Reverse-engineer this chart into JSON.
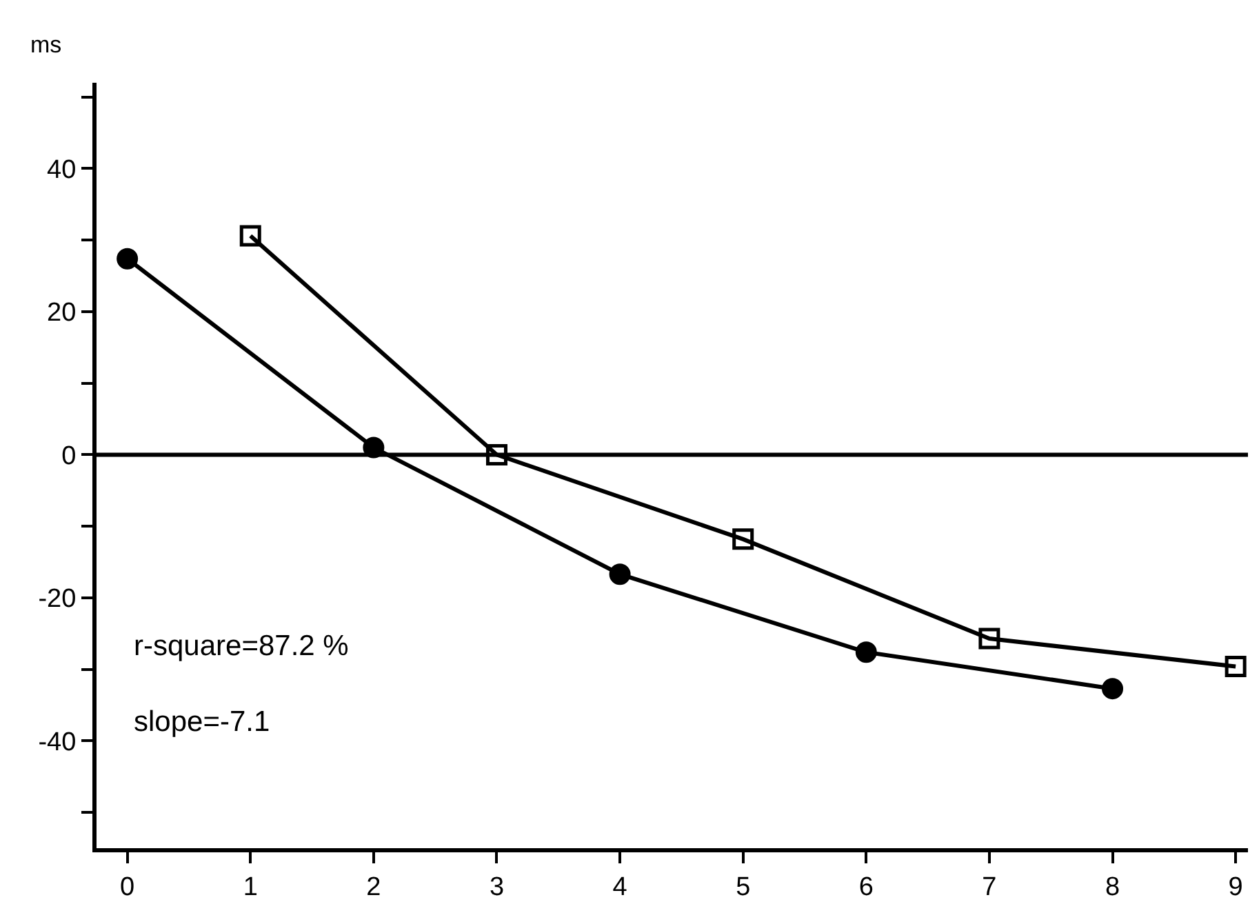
{
  "chart_data": {
    "type": "line",
    "ylabel": "ms",
    "series": [
      {
        "color": "#000000",
        "marker": "circle",
        "x": [
          0,
          2,
          4,
          6,
          8
        ],
        "values": [
          27.4,
          1,
          -16.7,
          -27.6,
          -32.7
        ]
      },
      {
        "color": "#000000",
        "marker": "square",
        "x": [
          1,
          3,
          5,
          7,
          9
        ],
        "values": [
          30.6,
          0,
          -11.8,
          -25.7,
          -29.6
        ]
      }
    ],
    "xlim": [
      -0.25,
      9.1
    ],
    "xticks": [
      0,
      1,
      2,
      3,
      4,
      5,
      6,
      7,
      8,
      9
    ],
    "ylim": [
      -55,
      52
    ],
    "yticks": [
      {
        "value": -50,
        "label": null
      },
      -40,
      {
        "value": -30,
        "label": null
      },
      -20,
      {
        "value": -10,
        "label": null
      },
      0,
      {
        "value": 10,
        "label": null
      },
      20,
      {
        "value": 30,
        "label": null
      },
      40,
      {
        "value": 50,
        "label": null
      }
    ],
    "ref_lines": [
      {
        "axis": "y",
        "value": 0,
        "color": "#000000"
      }
    ],
    "annotations": [
      "r-square=87.2 %",
      "slope=-7.1"
    ],
    "grid": false,
    "line_style": "solid"
  }
}
